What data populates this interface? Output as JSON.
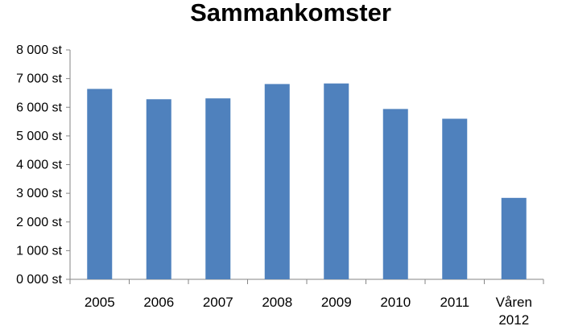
{
  "chart_data": {
    "type": "bar",
    "title": "Sammankomster",
    "xlabel": "",
    "ylabel": "",
    "categories": [
      "2005",
      "2006",
      "2007",
      "2008",
      "2009",
      "2010",
      "2011",
      "Våren 2012"
    ],
    "series": [
      {
        "values": [
          6640,
          6280,
          6310,
          6810,
          6830,
          5940,
          5600,
          2840
        ],
        "color": "#4F81BD"
      }
    ],
    "ylim": [
      0,
      8000
    ],
    "yticks": [
      0,
      1000,
      2000,
      3000,
      4000,
      5000,
      6000,
      7000,
      8000
    ],
    "ytick_labels": [
      "0 000 st",
      "1 000 st",
      "2 000 st",
      "3 000 st",
      "4 000 st",
      "5 000 st",
      "6 000 st",
      "7 000 st",
      "8 000 st"
    ],
    "grid": false,
    "legend": "none"
  }
}
